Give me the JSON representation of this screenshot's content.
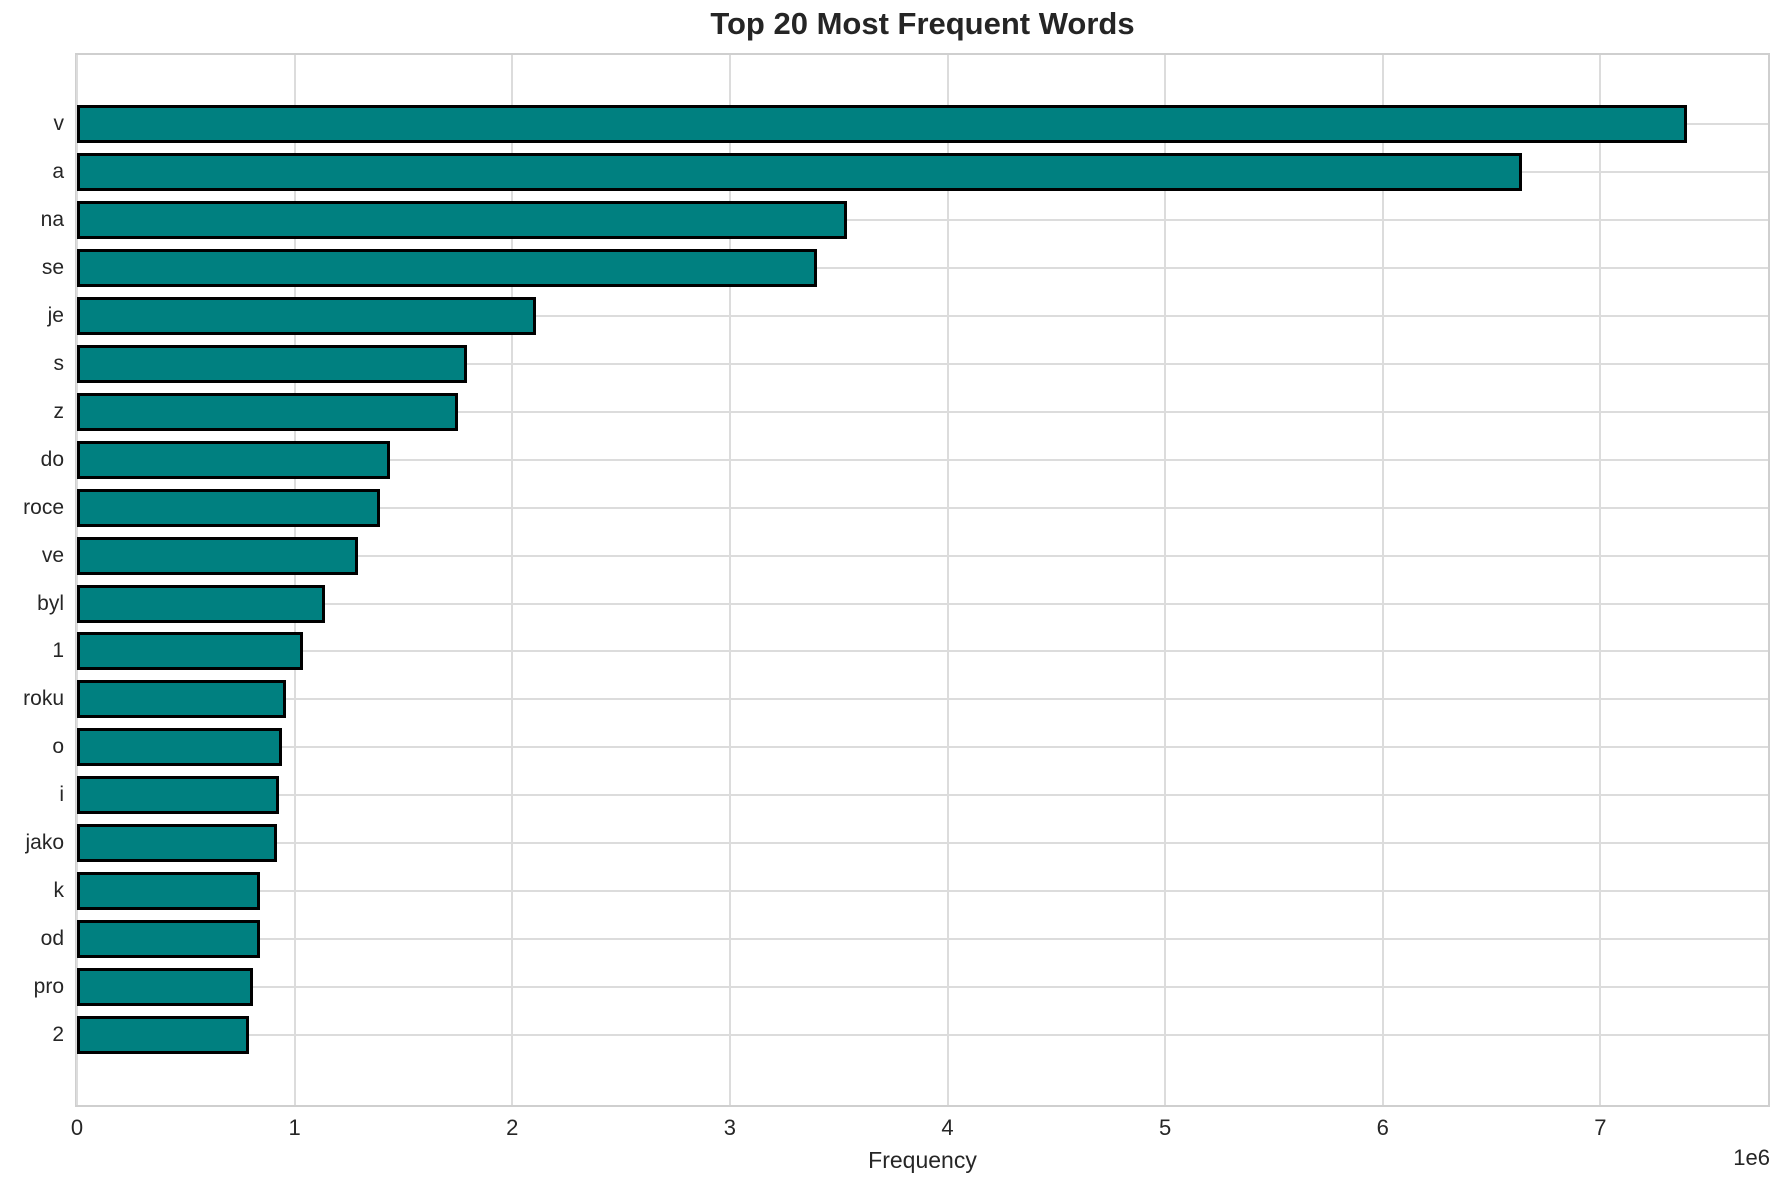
{
  "chart_data": {
    "type": "bar",
    "orientation": "horizontal",
    "title": "Top 20 Most Frequent Words",
    "xlabel": "Frequency",
    "offset_label": "1e6",
    "categories": [
      "v",
      "a",
      "na",
      "se",
      "je",
      "s",
      "z",
      "do",
      "roce",
      "ve",
      "byl",
      "1",
      "roku",
      "o",
      "i",
      "jako",
      "k",
      "od",
      "pro",
      "2"
    ],
    "values_millions": [
      7.4,
      6.64,
      3.54,
      3.4,
      2.11,
      1.79,
      1.75,
      1.44,
      1.39,
      1.29,
      1.14,
      1.04,
      0.96,
      0.94,
      0.93,
      0.92,
      0.84,
      0.84,
      0.81,
      0.79
    ],
    "x_ticks": [
      0,
      1,
      2,
      3,
      4,
      5,
      6,
      7
    ],
    "xlim": [
      0,
      7.77
    ],
    "grid": true,
    "legend": "none",
    "bar_color": "#008080",
    "bar_edge_color": "#000000",
    "grid_color": "#dcdcdc",
    "text_color": "#262626"
  }
}
